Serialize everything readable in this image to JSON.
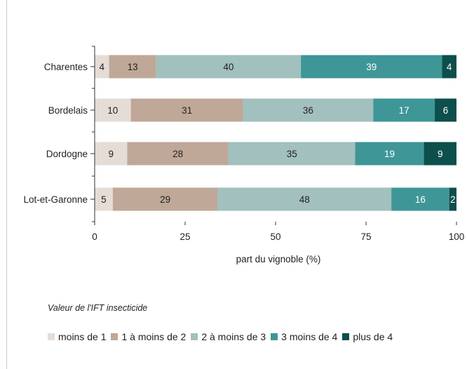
{
  "chart_data": {
    "type": "bar",
    "orientation": "horizontal",
    "stacked": true,
    "categories": [
      "Charentes",
      "Bordelais",
      "Dordogne",
      "Lot-et-Garonne"
    ],
    "series": [
      {
        "name": "moins de 1",
        "color": "#e6dcd6",
        "values": [
          4,
          10,
          9,
          5
        ]
      },
      {
        "name": "1 à moins de 2",
        "color": "#bfa898",
        "values": [
          13,
          31,
          28,
          29
        ]
      },
      {
        "name": "2 à moins de 3",
        "color": "#a1c0be",
        "values": [
          40,
          36,
          35,
          48
        ]
      },
      {
        "name": "3 moins de 4",
        "color": "#3f9697",
        "values": [
          39,
          17,
          19,
          16
        ]
      },
      {
        "name": "plus de 4",
        "color": "#0d4f4c",
        "values": [
          4,
          6,
          9,
          2
        ]
      }
    ],
    "xlabel": "part du vignoble (%)",
    "ylabel": "",
    "xlim": [
      0,
      100
    ],
    "xticks": [
      "0",
      "25",
      "50",
      "75",
      "100"
    ],
    "grid": false,
    "legend_title": "Valeur de l'IFT insecticide",
    "legend_position": "bottom"
  }
}
